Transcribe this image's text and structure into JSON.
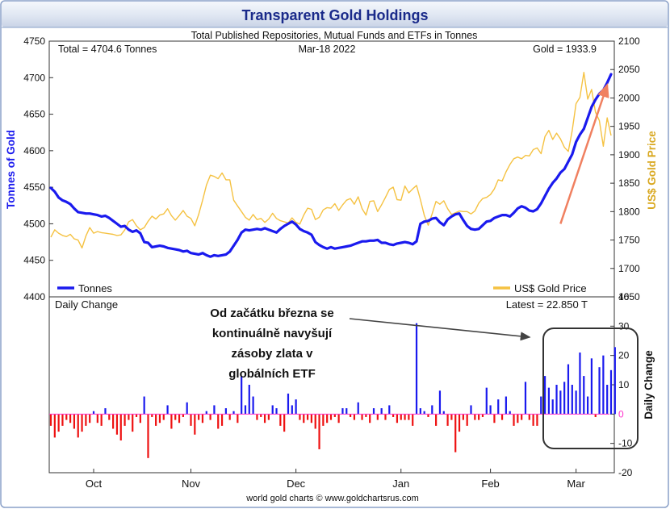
{
  "chart_data": {
    "type": "line",
    "title": "Transparent Gold Holdings",
    "subtitle": "Total Published Repositories, Mutual Funds and ETFs in Tonnes",
    "footer": "world gold charts © www.goldchartsrus.com",
    "colors": {
      "tonnes": "#1a1aee",
      "gold": "#f5c242",
      "positive": "#1a1aee",
      "negative": "#ee1111",
      "arrow": "#f08060",
      "title": "#1a2a8a",
      "zero_line": "#ff33cc"
    },
    "upper": {
      "info_total": "Total = 4704.6 Tonnes",
      "info_date": "Mar-18  2022",
      "info_gold": "Gold = 1933.9",
      "y_left_label": "Tonnes of Gold",
      "y_right_label": "US$ Gold Price",
      "y_left_range": [
        4400,
        4750
      ],
      "y_right_range": [
        1650,
        2100
      ],
      "y_left_ticks": [
        4400,
        4450,
        4500,
        4550,
        4600,
        4650,
        4700,
        4750
      ],
      "y_right_ticks": [
        1650,
        1700,
        1750,
        1800,
        1850,
        1900,
        1950,
        2000,
        2050,
        2100
      ],
      "legend": {
        "tonnes": "Tonnes",
        "gold": "US$ Gold Price"
      },
      "tonnes": [
        4549,
        4544,
        4536,
        4532,
        4530,
        4527,
        4521,
        4516,
        4515,
        4514,
        4514,
        4513,
        4512,
        4510,
        4511,
        4508,
        4504,
        4500,
        4496,
        4497,
        4492,
        4489,
        4491,
        4487,
        4475,
        4474,
        4468,
        4469,
        4470,
        4469,
        4467,
        4466,
        4465,
        4464,
        4462,
        4463,
        4460,
        4459,
        4458,
        4460,
        4457,
        4455,
        4457,
        4456,
        4457,
        4458,
        4462,
        4470,
        4478,
        4488,
        4492,
        4491,
        4492,
        4493,
        4492,
        4494,
        4492,
        4490,
        4488,
        4493,
        4497,
        4500,
        4503,
        4499,
        4493,
        4490,
        4488,
        4485,
        4475,
        4471,
        4468,
        4466,
        4468,
        4466,
        4467,
        4468,
        4469,
        4470,
        4472,
        4474,
        4476,
        4476,
        4477,
        4477,
        4478,
        4474,
        4474,
        4472,
        4471,
        4473,
        4474,
        4475,
        4474,
        4472,
        4476,
        4500,
        4503,
        4504,
        4507,
        4508,
        4502,
        4498,
        4506,
        4510,
        4513,
        4514,
        4505,
        4497,
        4493,
        4492,
        4493,
        4498,
        4503,
        4504,
        4508,
        4510,
        4512,
        4512,
        4510,
        4515,
        4521,
        4524,
        4522,
        4518,
        4517,
        4520,
        4528,
        4538,
        4548,
        4556,
        4562,
        4570,
        4575,
        4585,
        4595,
        4612,
        4622,
        4630,
        4645,
        4660,
        4670,
        4678,
        4683,
        4693,
        4704.6
      ],
      "gold": [
        1755,
        1768,
        1762,
        1758,
        1756,
        1760,
        1752,
        1750,
        1736,
        1757,
        1772,
        1762,
        1765,
        1763,
        1762,
        1761,
        1760,
        1758,
        1759,
        1768,
        1782,
        1786,
        1775,
        1768,
        1772,
        1783,
        1792,
        1787,
        1794,
        1796,
        1805,
        1793,
        1785,
        1793,
        1802,
        1792,
        1788,
        1775,
        1795,
        1820,
        1847,
        1864,
        1862,
        1858,
        1868,
        1856,
        1856,
        1820,
        1810,
        1800,
        1790,
        1785,
        1795,
        1786,
        1788,
        1781,
        1787,
        1797,
        1788,
        1784,
        1782,
        1780,
        1789,
        1781,
        1778,
        1794,
        1806,
        1804,
        1786,
        1790,
        1803,
        1807,
        1806,
        1814,
        1802,
        1812,
        1820,
        1823,
        1813,
        1826,
        1805,
        1794,
        1818,
        1819,
        1800,
        1812,
        1825,
        1839,
        1843,
        1821,
        1820,
        1845,
        1833,
        1840,
        1846,
        1821,
        1793,
        1776,
        1796,
        1818,
        1813,
        1819,
        1805,
        1795,
        1798,
        1801,
        1800,
        1800,
        1796,
        1801,
        1815,
        1823,
        1825,
        1830,
        1840,
        1856,
        1854,
        1870,
        1883,
        1893,
        1896,
        1893,
        1899,
        1898,
        1909,
        1912,
        1902,
        1932,
        1943,
        1927,
        1938,
        1928,
        1913,
        1906,
        1942,
        1990,
        2001,
        2045,
        1998,
        2015,
        1975,
        1960,
        1915,
        1965,
        1933.9
      ],
      "arrow": {
        "from": [
          131,
          4500
        ],
        "to": [
          143,
          4690
        ]
      }
    },
    "lower": {
      "title_left": "Daily Change",
      "title_right": "Latest = 22.850 T",
      "y_label": "Daily Change",
      "y_range": [
        -20,
        40
      ],
      "y_ticks": [
        -20,
        -10,
        0,
        10,
        20,
        30,
        40
      ],
      "annotation": "Od začátku března se kontinuálně navyšují zásoby zlata v globálních ETF",
      "annotation_lines": [
        "Od začátku března se",
        "kontinuálně navyšují",
        "zásoby zlata v",
        "globálních ETF"
      ],
      "values": [
        -4,
        -8,
        -6,
        -4,
        -2,
        -3,
        -5,
        -8,
        -6,
        -4,
        -3,
        1,
        -3,
        -4,
        2,
        -2,
        -5,
        -7,
        -9,
        -4,
        -2,
        -6,
        -1,
        -3,
        6,
        -15,
        -1,
        -4,
        -3,
        -2,
        3,
        -5,
        -2,
        -3,
        -1,
        4,
        -4,
        -7,
        -2,
        -3,
        1,
        -2,
        3,
        -5,
        -4,
        2,
        -2,
        1,
        -3,
        13,
        3,
        10,
        6,
        -2,
        -1,
        -3,
        -2,
        3,
        2,
        -4,
        -6,
        7,
        3,
        5,
        -2,
        -3,
        -2,
        -3,
        -5,
        -12,
        -4,
        -3,
        -2,
        -1,
        -3,
        2,
        2,
        -1,
        -2,
        4,
        -2,
        -1,
        -3,
        2,
        -2,
        2,
        -2,
        3,
        -1,
        -3,
        -2,
        -2,
        -2,
        -4,
        31,
        2,
        1,
        -1,
        3,
        -4,
        8,
        1,
        -4,
        -2,
        -13,
        -6,
        -2,
        -4,
        3,
        -2,
        -2,
        -1,
        9,
        3,
        -3,
        5,
        -2,
        6,
        1,
        -4,
        -3,
        -2,
        11,
        -2,
        -4,
        -4,
        6,
        13,
        9,
        5,
        10,
        8,
        11,
        17,
        10,
        8,
        21,
        13,
        6,
        19,
        -1,
        16,
        20,
        10,
        15,
        22.85
      ]
    },
    "x_axis": {
      "months": [
        {
          "label": "Oct",
          "index": 11
        },
        {
          "label": "Nov",
          "index": 36
        },
        {
          "label": "Dec",
          "index": 63
        },
        {
          "label": "Jan",
          "index": 90
        },
        {
          "label": "Feb",
          "index": 113
        },
        {
          "label": "Mar",
          "index": 135
        }
      ]
    }
  }
}
